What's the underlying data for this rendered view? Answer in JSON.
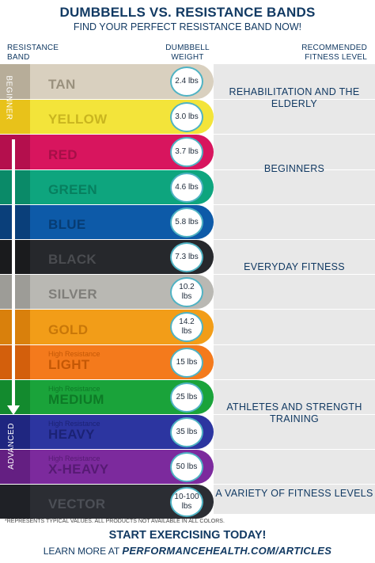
{
  "header": {
    "title": "DUMBBELLS VS. RESISTANCE BANDS",
    "subtitle": "FIND YOUR PERFECT RESISTANCE BAND NOW!"
  },
  "columns": {
    "band_line1": "RESISTANCE",
    "band_line2": "BAND",
    "weight_line1": "DUMBBELL",
    "weight_line2": "WEIGHT",
    "level_line1": "RECOMMENDED",
    "level_line2": "FITNESS LEVEL"
  },
  "progression": {
    "start": "BEGINNER",
    "end": "ADVANCED"
  },
  "bands": [
    {
      "prefix": "",
      "label": "TAN",
      "weight": "2.4 lbs",
      "main": "#d9d0bf",
      "dark": "#b7ad99",
      "text": "#9a917e"
    },
    {
      "prefix": "",
      "label": "YELLOW",
      "weight": "3.0 lbs",
      "main": "#f3e43a",
      "dark": "#e8c21a",
      "text": "#c9b51f"
    },
    {
      "prefix": "",
      "label": "RED",
      "weight": "3.7 lbs",
      "main": "#d8155e",
      "dark": "#b40f4d",
      "text": "#a50f47"
    },
    {
      "prefix": "",
      "label": "GREEN",
      "weight": "4.6 lbs",
      "main": "#0ea57e",
      "dark": "#0a8a68",
      "text": "#077f5f"
    },
    {
      "prefix": "",
      "label": "BLUE",
      "weight": "5.8 lbs",
      "main": "#0d5aa8",
      "dark": "#0a3f7a",
      "text": "#073c73"
    },
    {
      "prefix": "",
      "label": "BLACK",
      "weight": "7.3 lbs",
      "main": "#26282c",
      "dark": "#1a1b1d",
      "text": "#4a4c50"
    },
    {
      "prefix": "",
      "label": "SILVER",
      "weight": "10.2 lbs",
      "main": "#b9b8b3",
      "dark": "#9d9c97",
      "text": "#7f7e7a"
    },
    {
      "prefix": "",
      "label": "GOLD",
      "weight": "14.2 lbs",
      "main": "#f29d18",
      "dark": "#d9800c",
      "text": "#c87708"
    },
    {
      "prefix": "High Resistance",
      "label": "LIGHT",
      "weight": "15 lbs",
      "main": "#f47a1c",
      "dark": "#d35f0c",
      "text": "#c45806"
    },
    {
      "prefix": "High Resistance",
      "label": "MEDIUM",
      "weight": "25 lbs",
      "main": "#1aa33a",
      "dark": "#138a2e",
      "text": "#0d7a26"
    },
    {
      "prefix": "High Resistance",
      "label": "HEAVY",
      "weight": "35 lbs",
      "main": "#2c35a0",
      "dark": "#1f2680",
      "text": "#1b2275"
    },
    {
      "prefix": "High Resistance",
      "label": "X-HEAVY",
      "weight": "50 lbs",
      "main": "#7c2a9d",
      "dark": "#641f82",
      "text": "#561a73"
    },
    {
      "prefix": "",
      "label": "VECTOR",
      "weight": "10-100 lbs",
      "main": "#2b2d33",
      "dark": "#1f2126",
      "text": "#4c4f56"
    }
  ],
  "levels": [
    "REHABILITATION AND THE ELDERLY",
    "BEGINNERS",
    "EVERYDAY FITNESS",
    "ATHLETES AND STRENGTH TRAINING",
    "A VARIETY OF FITNESS LEVELS"
  ],
  "footer": {
    "note": "*REPRESENTS TYPICAL VALUES. ALL PRODUCTS NOT AVAILABLE IN ALL COLORS.",
    "cta": "START EXERCISING TODAY!",
    "learn_prefix": "LEARN MORE AT",
    "url": "PERFORMANCEHEALTH.COM/ARTICLES"
  },
  "colors": {
    "heading": "#123a63",
    "circle_border": "#4fb3c4",
    "level_panel": "#e8e8e8"
  }
}
